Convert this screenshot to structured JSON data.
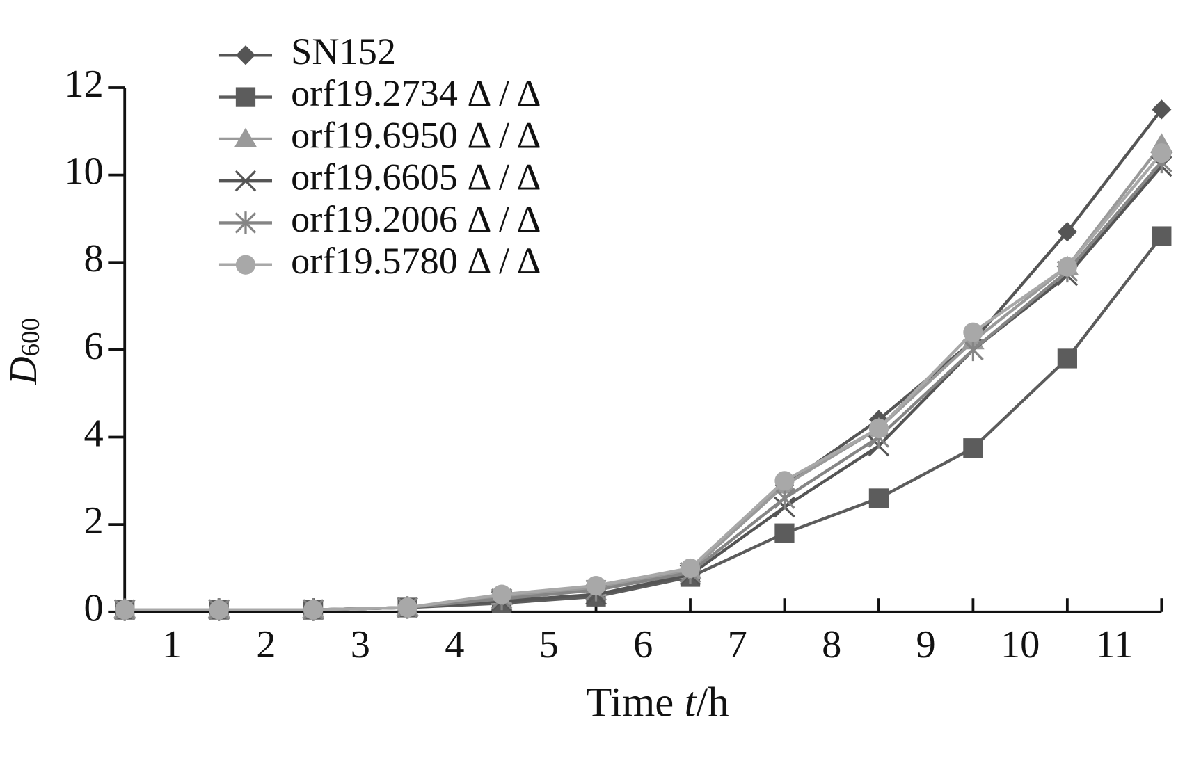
{
  "chart_data": {
    "type": "line",
    "xlabel": [
      "Time ",
      "t",
      "/h"
    ],
    "ylabel": "D",
    "ylabel_subscript": "600",
    "x": [
      0.5,
      1.5,
      2.5,
      3.5,
      4.5,
      5.5,
      6.5,
      7.5,
      8.5,
      9.5,
      10.5,
      11.5
    ],
    "xlim": [
      0.5,
      11.5
    ],
    "xticks": [
      1,
      2,
      3,
      4,
      5,
      6,
      7,
      8,
      9,
      10,
      11
    ],
    "ylim": [
      0,
      12
    ],
    "yticks": [
      0,
      2,
      4,
      6,
      8,
      10,
      12
    ],
    "legend": "upper left",
    "series": [
      {
        "name": "SN152",
        "color": "#555555",
        "marker": "diamond",
        "values": [
          0.05,
          0.05,
          0.05,
          0.1,
          0.35,
          0.55,
          0.95,
          2.9,
          4.4,
          6.2,
          8.7,
          11.5
        ]
      },
      {
        "name": "orf19.2734 Δ / Δ",
        "color": "#5c5c5c",
        "marker": "square",
        "values": [
          0.05,
          0.05,
          0.05,
          0.1,
          0.2,
          0.35,
          0.8,
          1.8,
          2.6,
          3.75,
          5.8,
          8.6
        ]
      },
      {
        "name": "orf19.6950 Δ / Δ",
        "color": "#9a9a9a",
        "marker": "triangle",
        "values": [
          0.05,
          0.05,
          0.05,
          0.1,
          0.35,
          0.55,
          0.95,
          2.9,
          4.2,
          6.2,
          7.9,
          10.7
        ]
      },
      {
        "name": "orf19.6605 Δ / Δ",
        "color": "#555555",
        "marker": "x",
        "values": [
          0.05,
          0.05,
          0.05,
          0.1,
          0.25,
          0.4,
          0.85,
          2.4,
          3.8,
          6.0,
          7.7,
          10.2
        ]
      },
      {
        "name": "orf19.2006 Δ / Δ",
        "color": "#858585",
        "marker": "asterisk",
        "values": [
          0.05,
          0.05,
          0.05,
          0.1,
          0.3,
          0.5,
          0.9,
          2.6,
          4.0,
          6.0,
          7.8,
          10.3
        ]
      },
      {
        "name": "orf19.5780 Δ / Δ",
        "color": "#a8a8a8",
        "marker": "circle",
        "values": [
          0.05,
          0.05,
          0.05,
          0.1,
          0.4,
          0.6,
          1.0,
          3.0,
          4.2,
          6.4,
          7.9,
          10.5
        ]
      }
    ]
  }
}
